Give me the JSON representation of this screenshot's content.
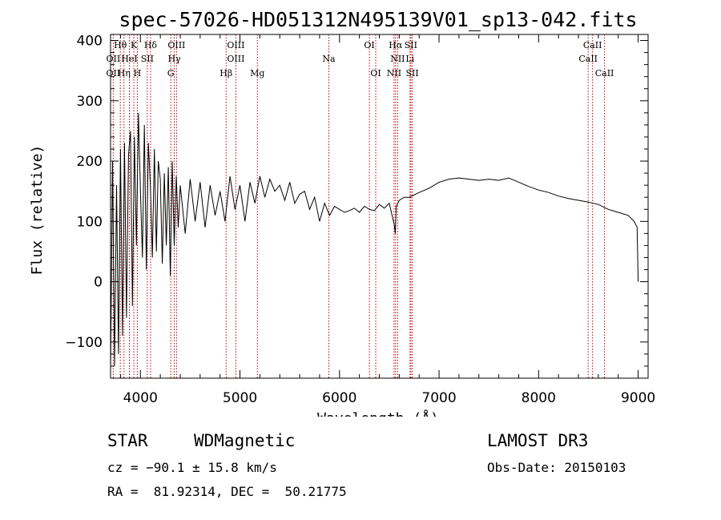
{
  "chart_data": {
    "type": "line",
    "title": "spec-57026-HD051312N495139V01_sp13-042.fits",
    "xlabel": "Wavelength (Å)",
    "ylabel": "Flux (relative)",
    "xlim": [
      3700,
      9100
    ],
    "ylim": [
      -160,
      410
    ],
    "xticks": [
      4000,
      5000,
      6000,
      7000,
      8000,
      9000
    ],
    "yticks": [
      -100,
      0,
      100,
      200,
      300,
      400
    ],
    "xtick_labels": [
      "4000",
      "5000",
      "6000",
      "7000",
      "8000",
      "9000"
    ],
    "ytick_labels": [
      "−100",
      "0",
      "100",
      "200",
      "300",
      "400"
    ],
    "series": [
      {
        "name": "flux",
        "x": [
          3700,
          3720,
          3740,
          3760,
          3780,
          3800,
          3820,
          3840,
          3860,
          3880,
          3900,
          3920,
          3940,
          3960,
          3980,
          4000,
          4020,
          4040,
          4060,
          4080,
          4100,
          4120,
          4140,
          4160,
          4180,
          4200,
          4220,
          4240,
          4260,
          4280,
          4300,
          4320,
          4340,
          4360,
          4380,
          4400,
          4450,
          4500,
          4550,
          4600,
          4650,
          4700,
          4750,
          4800,
          4850,
          4900,
          4950,
          5000,
          5050,
          5100,
          5150,
          5200,
          5250,
          5300,
          5350,
          5400,
          5450,
          5500,
          5550,
          5600,
          5650,
          5700,
          5750,
          5800,
          5850,
          5900,
          5950,
          6000,
          6050,
          6100,
          6150,
          6200,
          6250,
          6300,
          6350,
          6400,
          6450,
          6500,
          6550,
          6560,
          6570,
          6600,
          6650,
          6700,
          6800,
          6900,
          7000,
          7100,
          7200,
          7300,
          7400,
          7500,
          7600,
          7700,
          7800,
          7900,
          8000,
          8100,
          8200,
          8300,
          8400,
          8500,
          8600,
          8700,
          8800,
          8900,
          8960,
          8990,
          9000
        ],
        "y": [
          -150,
          200,
          -140,
          160,
          -120,
          220,
          -90,
          230,
          -60,
          210,
          250,
          -40,
          240,
          60,
          280,
          150,
          40,
          260,
          20,
          230,
          160,
          40,
          220,
          50,
          200,
          170,
          30,
          180,
          60,
          190,
          10,
          200,
          60,
          175,
          90,
          160,
          80,
          170,
          100,
          165,
          90,
          160,
          110,
          150,
          100,
          175,
          120,
          160,
          100,
          165,
          130,
          175,
          140,
          170,
          150,
          160,
          135,
          165,
          130,
          145,
          150,
          120,
          140,
          100,
          130,
          110,
          125,
          120,
          115,
          118,
          122,
          115,
          125,
          120,
          118,
          128,
          122,
          130,
          95,
          80,
          125,
          135,
          140,
          140,
          148,
          155,
          165,
          170,
          172,
          170,
          168,
          170,
          168,
          172,
          165,
          158,
          152,
          148,
          142,
          138,
          135,
          132,
          128,
          120,
          115,
          110,
          100,
          90,
          0
        ]
      }
    ],
    "spectral_lines": [
      {
        "label": "Hθ",
        "x": 3798,
        "row": 1
      },
      {
        "label": "K",
        "x": 3934,
        "row": 1
      },
      {
        "label": "Hδ",
        "x": 4102,
        "row": 1
      },
      {
        "label": "OIII",
        "x": 4363,
        "row": 1
      },
      {
        "label": "OIII",
        "x": 4959,
        "row": 1
      },
      {
        "label": "OI",
        "x": 6300,
        "row": 1
      },
      {
        "label": "Hα",
        "x": 6563,
        "row": 1
      },
      {
        "label": "SII",
        "x": 6717,
        "row": 1
      },
      {
        "label": "CaII",
        "x": 8542,
        "row": 1
      },
      {
        "label": "OII",
        "x": 3727,
        "row": 2
      },
      {
        "label": "HeI",
        "x": 3889,
        "row": 2
      },
      {
        "label": "SII",
        "x": 4069,
        "row": 2
      },
      {
        "label": "Hγ",
        "x": 4340,
        "row": 2
      },
      {
        "label": "OIII",
        "x": 4959,
        "row": 2
      },
      {
        "label": "Na",
        "x": 5893,
        "row": 2
      },
      {
        "label": "NII",
        "x": 6584,
        "row": 2
      },
      {
        "label": "Li",
        "x": 6708,
        "row": 2
      },
      {
        "label": "CaII",
        "x": 8498,
        "row": 2
      },
      {
        "label": "OII",
        "x": 3727,
        "row": 3
      },
      {
        "label": "Hη",
        "x": 3835,
        "row": 3
      },
      {
        "label": "H",
        "x": 3969,
        "row": 3
      },
      {
        "label": "G",
        "x": 4305,
        "row": 3
      },
      {
        "label": "Hβ",
        "x": 4861,
        "row": 3
      },
      {
        "label": "Mg",
        "x": 5175,
        "row": 3
      },
      {
        "label": "OI",
        "x": 6364,
        "row": 3
      },
      {
        "label": "NII",
        "x": 6548,
        "row": 3
      },
      {
        "label": "SII",
        "x": 6731,
        "row": 3
      },
      {
        "label": "CaII",
        "x": 8662,
        "row": 3
      }
    ]
  },
  "info": {
    "object_type": "STAR",
    "subclass": "WDMagnetic",
    "survey": "LAMOST DR3",
    "redshift_text": "cz = −90.1 ± 15.8 km/s",
    "obs_date": "Obs-Date: 20150103",
    "coords": "RA =  81.92314, DEC =  50.21775"
  },
  "colors": {
    "line": "#000000",
    "marker": "#c00000",
    "axis": "#000000"
  }
}
